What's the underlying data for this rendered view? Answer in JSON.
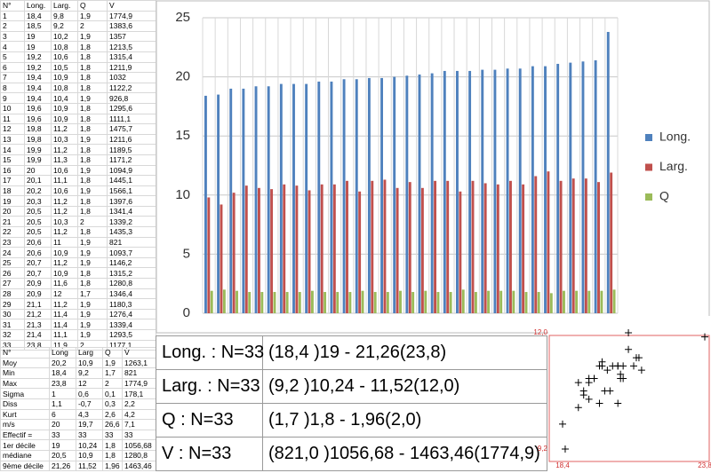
{
  "table": {
    "header": [
      "N°",
      "Long.",
      "Larg.",
      "Q",
      "V"
    ],
    "rows": [
      [
        "1",
        "18,4",
        "9,8",
        "1,9",
        "1774,9"
      ],
      [
        "2",
        "18,5",
        "9,2",
        "2",
        "1383,6"
      ],
      [
        "3",
        "19",
        "10,2",
        "1,9",
        "1357"
      ],
      [
        "4",
        "19",
        "10,8",
        "1,8",
        "1213,5"
      ],
      [
        "5",
        "19,2",
        "10,6",
        "1,8",
        "1315,4"
      ],
      [
        "6",
        "19,2",
        "10,5",
        "1,8",
        "1211,9"
      ],
      [
        "7",
        "19,4",
        "10,9",
        "1,8",
        "1032"
      ],
      [
        "8",
        "19,4",
        "10,8",
        "1,8",
        "1122,2"
      ],
      [
        "9",
        "19,4",
        "10,4",
        "1,9",
        "926,8"
      ],
      [
        "10",
        "19,6",
        "10,9",
        "1,8",
        "1295,6"
      ],
      [
        "11",
        "19,6",
        "10,9",
        "1,8",
        "1111,1"
      ],
      [
        "12",
        "19,8",
        "11,2",
        "1,8",
        "1475,7"
      ],
      [
        "13",
        "19,8",
        "10,3",
        "1,9",
        "1211,6"
      ],
      [
        "14",
        "19,9",
        "11,2",
        "1,8",
        "1189,5"
      ],
      [
        "15",
        "19,9",
        "11,3",
        "1,8",
        "1171,2"
      ],
      [
        "16",
        "20",
        "10,6",
        "1,9",
        "1094,9"
      ],
      [
        "17",
        "20,1",
        "11,1",
        "1,8",
        "1445,1"
      ],
      [
        "18",
        "20,2",
        "10,6",
        "1,9",
        "1566,1"
      ],
      [
        "19",
        "20,3",
        "11,2",
        "1,8",
        "1397,6"
      ],
      [
        "20",
        "20,5",
        "11,2",
        "1,8",
        "1341,4"
      ],
      [
        "21",
        "20,5",
        "10,3",
        "2",
        "1339,2"
      ],
      [
        "22",
        "20,5",
        "11,2",
        "1,8",
        "1435,3"
      ],
      [
        "23",
        "20,6",
        "11",
        "1,9",
        "821"
      ],
      [
        "24",
        "20,6",
        "10,9",
        "1,9",
        "1093,7"
      ],
      [
        "25",
        "20,7",
        "11,2",
        "1,9",
        "1146,2"
      ],
      [
        "26",
        "20,7",
        "10,9",
        "1,8",
        "1315,2"
      ],
      [
        "27",
        "20,9",
        "11,6",
        "1,8",
        "1280,8"
      ],
      [
        "28",
        "20,9",
        "12",
        "1,7",
        "1346,4"
      ],
      [
        "29",
        "21,1",
        "11,2",
        "1,9",
        "1180,3"
      ],
      [
        "30",
        "21,2",
        "11,4",
        "1,9",
        "1276,4"
      ],
      [
        "31",
        "21,3",
        "11,4",
        "1,9",
        "1339,4"
      ],
      [
        "32",
        "21,4",
        "11,1",
        "1,9",
        "1293,5"
      ],
      [
        "33",
        "23,8",
        "11,9",
        "2",
        "1177,1"
      ]
    ]
  },
  "stats": {
    "header": [
      "N°",
      "Long",
      "Larg",
      "Q",
      "V"
    ],
    "rows": [
      [
        "Moy",
        "20,2",
        "10,9",
        "1,9",
        "1263,1"
      ],
      [
        "Min",
        "18,4",
        "9,2",
        "1,7",
        "821"
      ],
      [
        "Max",
        "23,8",
        "12",
        "2",
        "1774,9"
      ],
      [
        "Sigma",
        "1",
        "0,6",
        "0,1",
        "178,1"
      ],
      [
        "Diss",
        "1,1",
        "-0,7",
        "0,3",
        "2,2"
      ],
      [
        "Kurt",
        "6",
        "4,3",
        "2,6",
        "4,2"
      ],
      [
        "m/s",
        "20",
        "19,7",
        "26,6",
        "7,1"
      ],
      [
        "Effectif =",
        "33",
        "33",
        "33",
        "33"
      ],
      [
        "1er décile",
        "19",
        "10,24",
        "1,8",
        "1056,68"
      ],
      [
        "médiane",
        "20,5",
        "10,9",
        "1,8",
        "1280,8"
      ],
      [
        "9ème décile",
        "21,26",
        "11,52",
        "1,96",
        "1463,46"
      ]
    ]
  },
  "summary": {
    "rows": [
      [
        "Long. : N=33",
        "(18,4 )19 - 21,26(23,8)"
      ],
      [
        "Larg. : N=33",
        "(9,2 )10,24 - 11,52(12,0)"
      ],
      [
        "Q : N=33",
        "(1,7 )1,8 - 1,96(2,0)"
      ],
      [
        "V : N=33",
        "(821,0 )1056,68 - 1463,46(1774,9)"
      ]
    ]
  },
  "chart_data": [
    {
      "type": "bar",
      "legend": "right",
      "grid": true,
      "ylim": [
        0,
        25
      ],
      "yticks": [
        0,
        5,
        10,
        15,
        20,
        25
      ],
      "series": [
        {
          "name": "Long.",
          "color": "#4f81bd",
          "values": [
            18.4,
            18.5,
            19,
            19,
            19.2,
            19.2,
            19.4,
            19.4,
            19.4,
            19.6,
            19.6,
            19.8,
            19.8,
            19.9,
            19.9,
            20,
            20.1,
            20.2,
            20.3,
            20.5,
            20.5,
            20.5,
            20.6,
            20.6,
            20.7,
            20.7,
            20.9,
            20.9,
            21.1,
            21.2,
            21.3,
            21.4,
            23.8
          ]
        },
        {
          "name": "Larg.",
          "color": "#c0504d",
          "values": [
            9.8,
            9.2,
            10.2,
            10.8,
            10.6,
            10.5,
            10.9,
            10.8,
            10.4,
            10.9,
            10.9,
            11.2,
            10.3,
            11.2,
            11.3,
            10.6,
            11.1,
            10.6,
            11.2,
            11.2,
            10.3,
            11.2,
            11,
            10.9,
            11.2,
            10.9,
            11.6,
            12,
            11.2,
            11.4,
            11.4,
            11.1,
            11.9
          ]
        },
        {
          "name": "Q",
          "color": "#9bbb59",
          "values": [
            1.9,
            2,
            1.9,
            1.8,
            1.8,
            1.8,
            1.8,
            1.8,
            1.9,
            1.8,
            1.8,
            1.8,
            1.9,
            1.8,
            1.8,
            1.9,
            1.8,
            1.9,
            1.8,
            1.8,
            2,
            1.8,
            1.9,
            1.9,
            1.9,
            1.8,
            1.8,
            1.7,
            1.9,
            1.9,
            1.9,
            1.9,
            2
          ]
        }
      ]
    },
    {
      "type": "scatter",
      "color": "#000000",
      "x": [
        18.4,
        18.5,
        19,
        19,
        19.2,
        19.2,
        19.4,
        19.4,
        19.4,
        19.6,
        19.6,
        19.8,
        19.8,
        19.9,
        19.9,
        20,
        20.1,
        20.2,
        20.3,
        20.5,
        20.5,
        20.5,
        20.6,
        20.6,
        20.7,
        20.7,
        20.9,
        20.9,
        21.1,
        21.2,
        21.3,
        21.4,
        23.8
      ],
      "values": [
        9.8,
        9.2,
        10.2,
        10.8,
        10.6,
        10.5,
        10.9,
        10.8,
        10.4,
        10.9,
        10.9,
        11.2,
        10.3,
        11.2,
        11.3,
        10.6,
        11.1,
        10.6,
        11.2,
        11.2,
        10.3,
        11.2,
        11,
        10.9,
        11.2,
        10.9,
        11.6,
        12,
        11.2,
        11.4,
        11.4,
        11.1,
        11.9
      ],
      "xlim": [
        18.4,
        23.8
      ],
      "ylim": [
        9.2,
        12.0
      ],
      "xticks": [
        {
          "value": 18.4,
          "label": "18,4"
        },
        {
          "value": 23.8,
          "label": "23,8"
        }
      ],
      "yticks": [
        {
          "value": 9.2,
          "label": "9,2"
        },
        {
          "value": 12.0,
          "label": "12,0"
        }
      ]
    }
  ]
}
